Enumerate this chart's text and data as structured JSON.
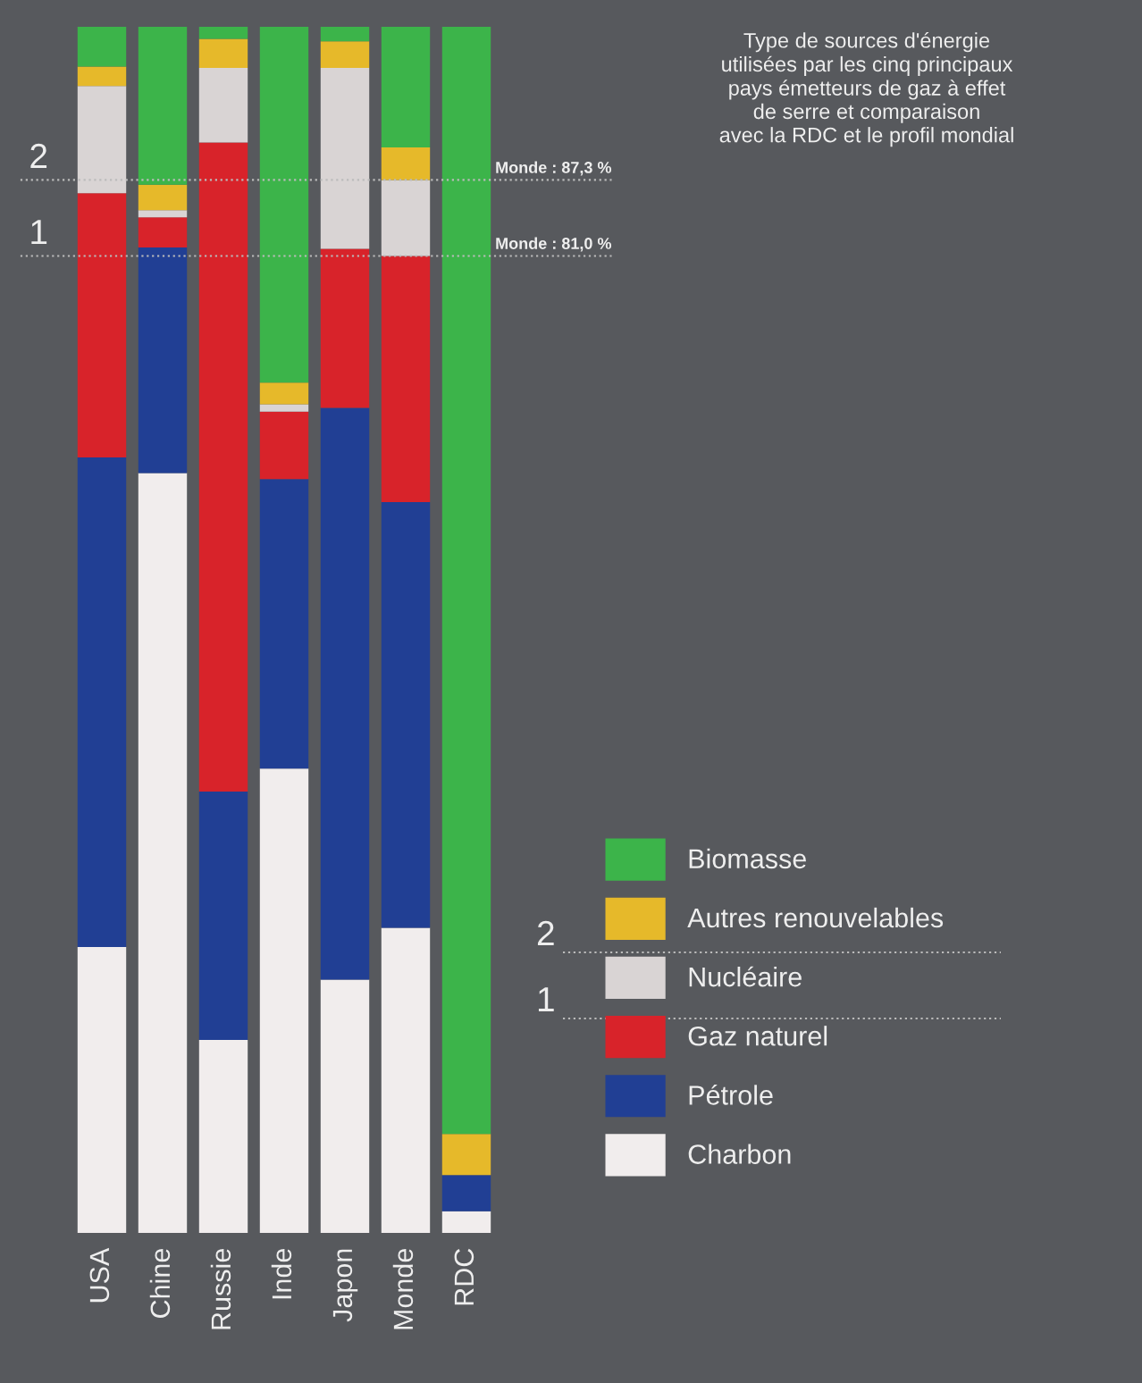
{
  "chart_data": {
    "type": "bar",
    "stacked": true,
    "title": "Type de sources d'énergie\nutilisées par les cinq principaux\npays émetteurs de gaz à effet\nde serre et comparaison\navec la RDC et le profil mondial",
    "categories": [
      "USA",
      "Chine",
      "Russie",
      "Inde",
      "Japon",
      "Monde",
      "RDC"
    ],
    "ylim": [
      0,
      100
    ],
    "series": [
      {
        "name": "Charbon",
        "color": "#f1eded",
        "values": [
          23.7,
          63,
          16,
          38.5,
          21,
          25.3,
          1.8
        ]
      },
      {
        "name": "Pétrole",
        "color": "#213f94",
        "values": [
          40.6,
          18.7,
          20.6,
          24,
          47.4,
          35.3,
          3
        ]
      },
      {
        "name": "Gaz naturel",
        "color": "#d8232a",
        "values": [
          21.9,
          2.5,
          53.8,
          5.6,
          13.2,
          20.4,
          0
        ]
      },
      {
        "name": "Nucléaire",
        "color": "#d9d4d4",
        "values": [
          8.9,
          0.6,
          6.2,
          0.6,
          15,
          6.3,
          0
        ]
      },
      {
        "name": "Autres renouvelables",
        "color": "#e6b92a",
        "values": [
          1.6,
          2.1,
          2.4,
          1.8,
          2.2,
          2.7,
          3.4
        ]
      },
      {
        "name": "Biomasse",
        "color": "#3cb44a",
        "values": [
          3.3,
          13.1,
          1,
          29.5,
          1.2,
          10,
          91.8
        ]
      }
    ],
    "ref_lines": [
      {
        "axis": "y",
        "value": 87.3,
        "label": "Monde : 87,3 %",
        "line_style": "dotted"
      },
      {
        "axis": "y",
        "value": 81.0,
        "label": "Monde : 81,0 %",
        "line_style": "dotted"
      }
    ],
    "annotations": [
      "2",
      "1"
    ],
    "legend": "bottom right",
    "grid": false
  }
}
